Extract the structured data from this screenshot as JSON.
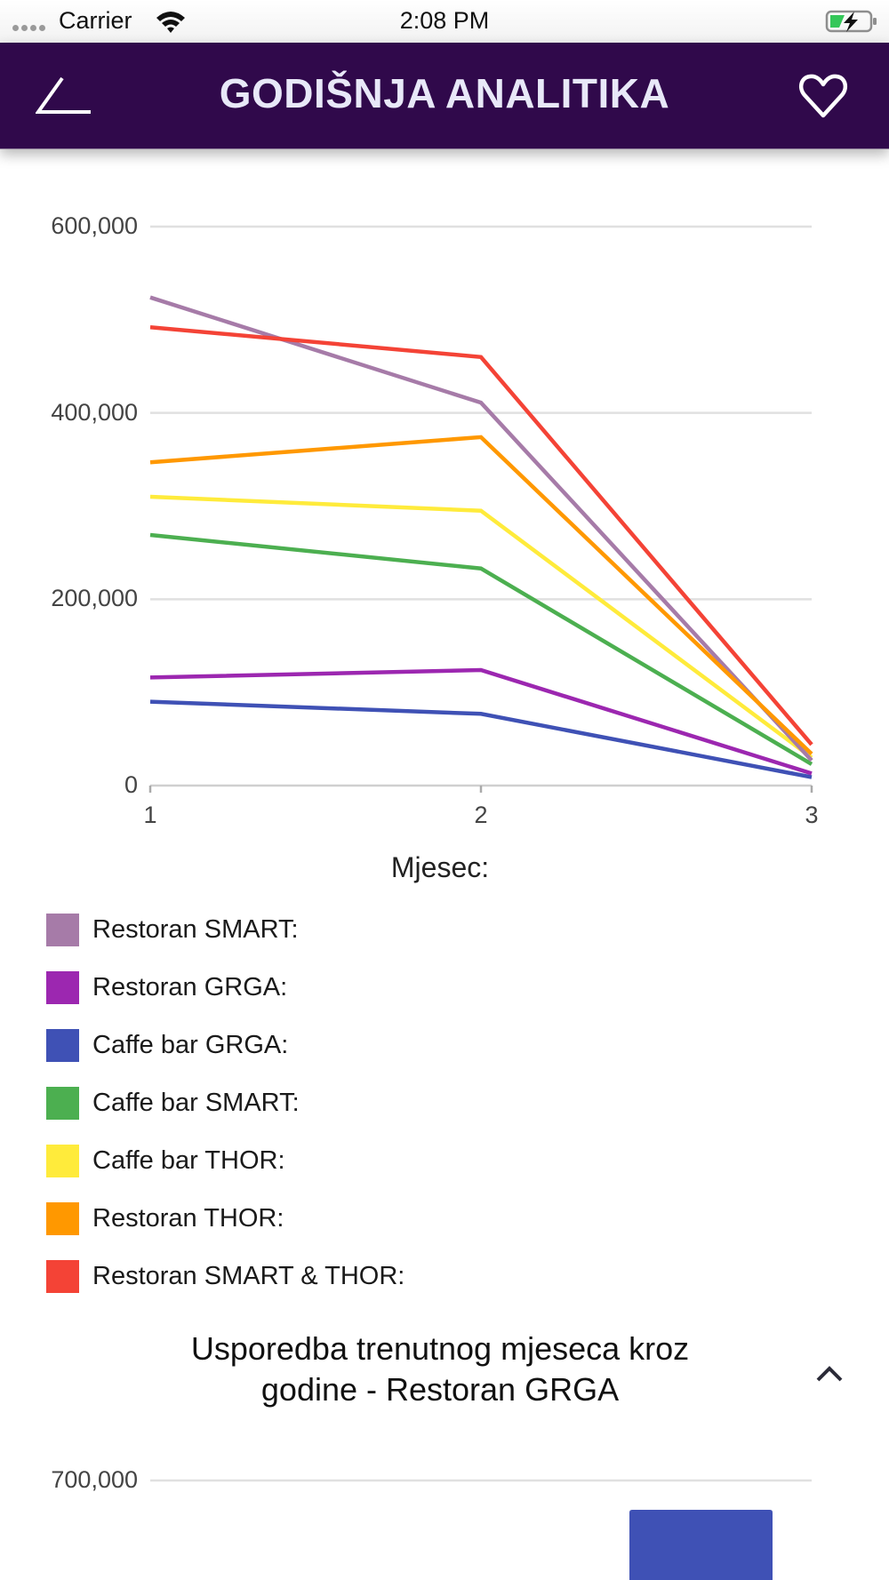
{
  "status_bar": {
    "carrier": "Carrier",
    "time": "2:08 PM",
    "signal_icon": "signal-dots-icon",
    "wifi_icon": "wifi-icon",
    "battery_icon": "battery-charging-icon",
    "battery_color": "#34c759"
  },
  "nav_bar": {
    "title": "GODIŠNJA ANALITIKA",
    "back_icon": "back-angle-icon",
    "favorite_icon": "heart-outline-icon",
    "background_color": "#30094b",
    "title_color": "#e8e8f8"
  },
  "chart_data": [
    {
      "type": "line",
      "title": "",
      "xlabel": "Mjesec:",
      "ylabel": "",
      "x": [
        1,
        2,
        3
      ],
      "x_tick_labels": [
        "1",
        "2",
        "3"
      ],
      "ylim": [
        0,
        600000
      ],
      "y_ticks": [
        0,
        200000,
        400000,
        600000
      ],
      "y_tick_labels": [
        "0",
        "200,000",
        "400,000",
        "600,000"
      ],
      "grid": true,
      "legend_placement": "bottom",
      "series": [
        {
          "name": "Restoran SMART:",
          "color": "#a67ba8",
          "values": [
            524000,
            411000,
            27000
          ]
        },
        {
          "name": "Restoran GRGA:",
          "color": "#9c27b0",
          "values": [
            116000,
            124000,
            13000
          ]
        },
        {
          "name": "Caffe bar GRGA:",
          "color": "#3f51b5",
          "values": [
            90000,
            77000,
            9000
          ]
        },
        {
          "name": "Caffe bar SMART:",
          "color": "#4caf50",
          "values": [
            269000,
            233000,
            23000
          ]
        },
        {
          "name": "Caffe bar THOR:",
          "color": "#ffeb3b",
          "values": [
            310000,
            295000,
            30000
          ]
        },
        {
          "name": "Restoran THOR:",
          "color": "#ff9800",
          "values": [
            347000,
            374000,
            34000
          ]
        },
        {
          "name": "Restoran SMART & THOR:",
          "color": "#f44336",
          "values": [
            492000,
            460000,
            44000
          ]
        }
      ]
    },
    {
      "type": "bar",
      "title": "Usporedba trenutnog  mjeseca kroz godine - Restoran GRGA",
      "y_tick_labels": [
        "700,000"
      ],
      "y_ticks": [
        700000
      ],
      "series": [
        {
          "name": "Restoran GRGA",
          "color": "#3f51b5",
          "values": [
            665000
          ]
        }
      ]
    }
  ],
  "section2": {
    "title_line1": "Usporedba trenutnog  mjeseca kroz",
    "title_line2": "godine - Restoran GRGA",
    "collapse_icon": "chevron-up-icon"
  }
}
